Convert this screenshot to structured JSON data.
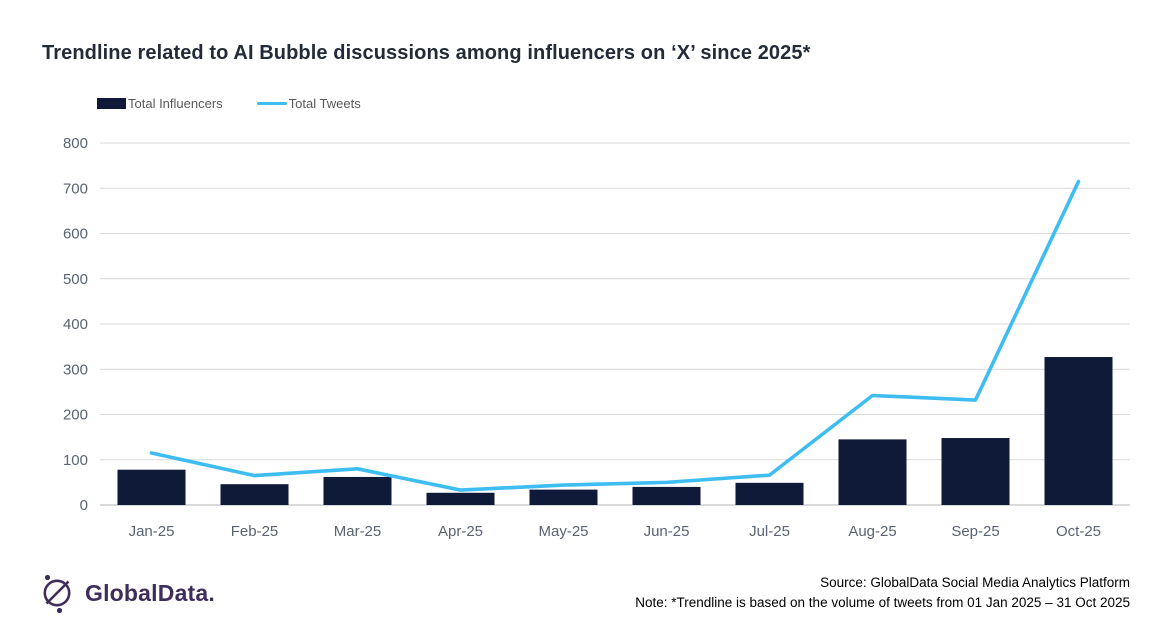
{
  "title": "Trendline related to AI Bubble discussions among influencers on ‘X’ since 2025*",
  "legend": [
    {
      "label": "Total Influencers",
      "type": "bar",
      "color": "#0e1a38"
    },
    {
      "label": "Total Tweets",
      "type": "line",
      "color": "#3ebdf3"
    }
  ],
  "chart_data": {
    "type": "combo",
    "categories": [
      "Jan-25",
      "Feb-25",
      "Mar-25",
      "Apr-25",
      "May-25",
      "Jun-25",
      "Jul-25",
      "Aug-25",
      "Sep-25",
      "Oct-25"
    ],
    "series": [
      {
        "name": "Total Influencers",
        "type": "bar",
        "color": "#0e1a38",
        "values": [
          78,
          46,
          62,
          27,
          34,
          40,
          49,
          145,
          148,
          327
        ]
      },
      {
        "name": "Total Tweets",
        "type": "line",
        "color": "#3ebdf3",
        "values": [
          115,
          65,
          80,
          33,
          44,
          50,
          66,
          242,
          232,
          715
        ]
      }
    ],
    "title": "Trendline related to AI Bubble discussions among influencers on ‘X’ since 2025*",
    "xlabel": "",
    "ylabel": "",
    "ylim": [
      0,
      800
    ],
    "yticks": [
      0,
      100,
      200,
      300,
      400,
      500,
      600,
      700,
      800
    ],
    "grid": "horizontal",
    "legend_position": "top-left"
  },
  "footer": {
    "logo_text": "GlobalData.",
    "source": "Source: GlobalData Social Media Analytics Platform",
    "note": "Note: *Trendline is based on the volume of tweets from 01 Jan 2025 – 31 Oct 2025"
  },
  "colors": {
    "bar": "#0e1a38",
    "line": "#3ebdf3",
    "grid": "#d9d9d9",
    "axis": "#c2c2c2",
    "tick_text": "#5a6372",
    "title_text": "#242b38",
    "legend_text": "#595959",
    "logo_purple": "#3e2d5c"
  }
}
